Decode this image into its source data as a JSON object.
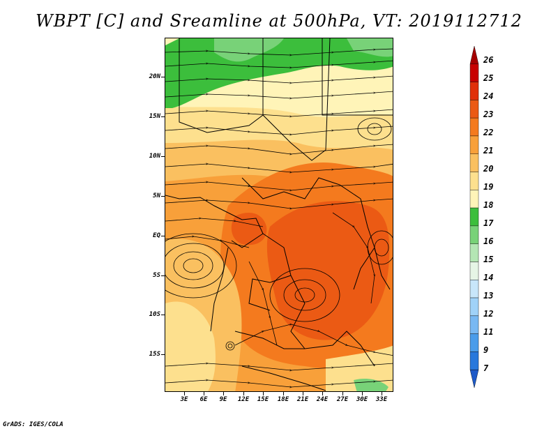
{
  "title": "WBPT [C] and Sreamline at 500hPa, VT: 2019112712",
  "credit": "GrADS: IGES/COLA",
  "map": {
    "lat_labels": [
      "20N",
      "15N",
      "10N",
      "5N",
      "EQ",
      "5S",
      "10S",
      "15S"
    ],
    "lon_labels": [
      "3E",
      "6E",
      "9E",
      "12E",
      "15E",
      "18E",
      "21E",
      "24E",
      "27E",
      "30E",
      "33E"
    ]
  },
  "colorbar": {
    "labels": [
      "26",
      "25",
      "24",
      "23",
      "22",
      "21",
      "20",
      "19",
      "18",
      "17",
      "16",
      "15",
      "14",
      "13",
      "12",
      "11",
      "9",
      "7"
    ],
    "colors": [
      "#a50000",
      "#c80000",
      "#e0300a",
      "#eb5a14",
      "#f47a1e",
      "#f8a03a",
      "#fac060",
      "#fde08e",
      "#fff4b8",
      "#3cbe3c",
      "#78d278",
      "#b4e6b4",
      "#e6f5e6",
      "#c8e6fa",
      "#a0d2f8",
      "#78b8f2",
      "#4a9cea",
      "#2878dc",
      "#1e5ac8"
    ]
  }
}
